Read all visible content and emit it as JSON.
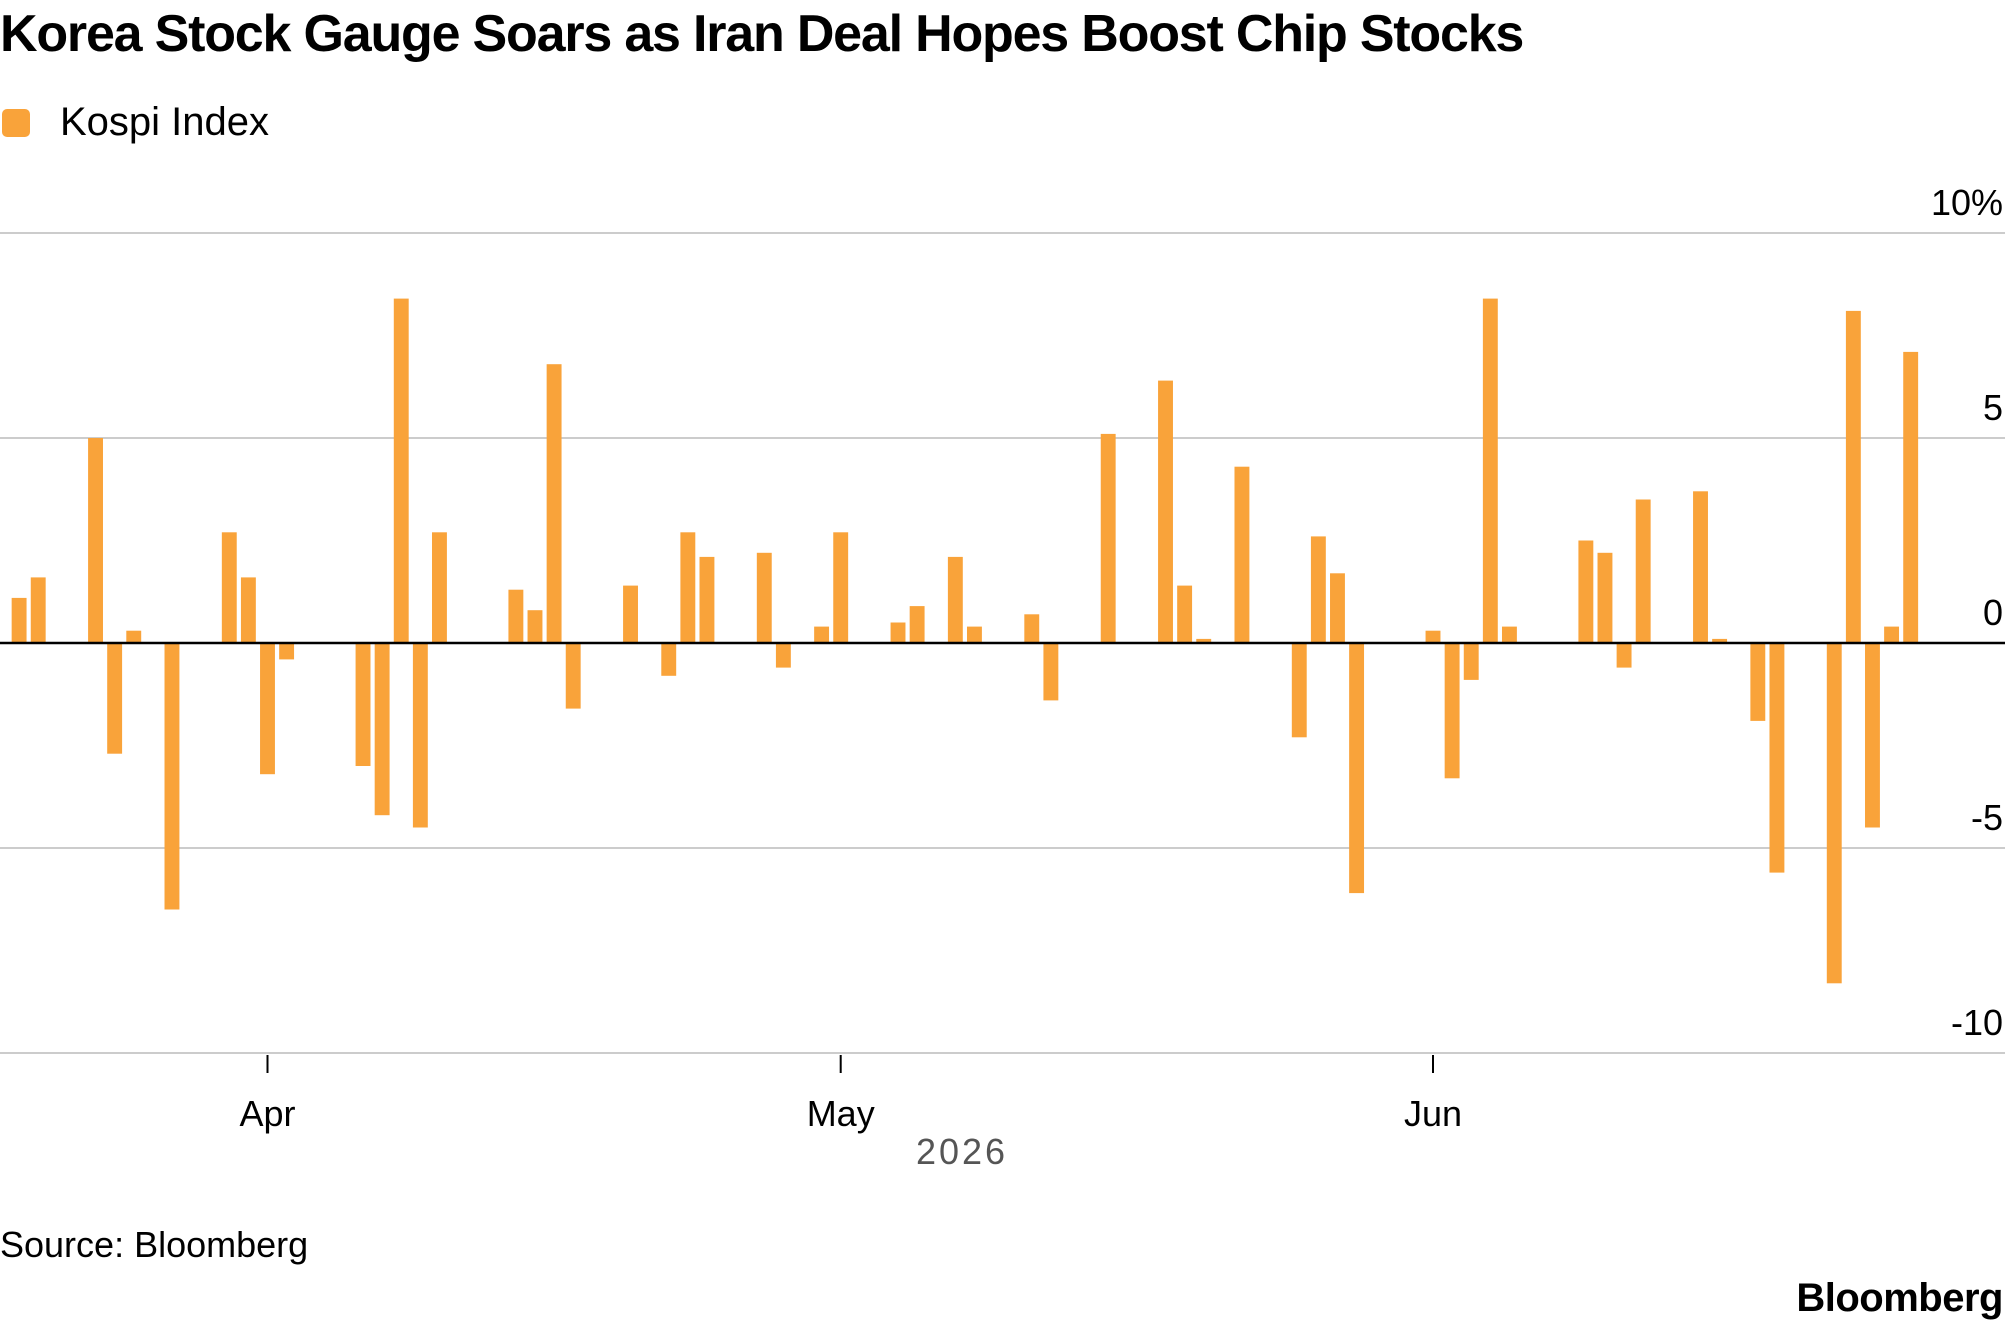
{
  "colors": {
    "bar": "#f9a33a",
    "grid": "#cccccc",
    "zero": "#000000",
    "axis": "#bbbbbb"
  },
  "footer": {
    "source": "Source: Bloomberg",
    "logo": "Bloomberg"
  },
  "chart_data": {
    "type": "bar",
    "title": "Korea Stock Gauge Soars as Iran Deal Hopes Boost Chip Stocks",
    "series": [
      {
        "name": "Kospi Index",
        "points": [
          [
            "2026-03-19",
            1.1
          ],
          [
            "2026-03-20",
            1.6
          ],
          [
            "2026-03-23",
            5.0
          ],
          [
            "2026-03-24",
            -2.7
          ],
          [
            "2026-03-25",
            0.3
          ],
          [
            "2026-03-27",
            -6.5
          ],
          [
            "2026-03-30",
            2.7
          ],
          [
            "2026-03-31",
            1.6
          ],
          [
            "2026-04-01",
            -3.2
          ],
          [
            "2026-04-02",
            -0.4
          ],
          [
            "2026-04-06",
            -3.0
          ],
          [
            "2026-04-07",
            -4.2
          ],
          [
            "2026-04-08",
            8.4
          ],
          [
            "2026-04-09",
            -4.5
          ],
          [
            "2026-04-10",
            2.7
          ],
          [
            "2026-04-14",
            1.3
          ],
          [
            "2026-04-15",
            0.8
          ],
          [
            "2026-04-16",
            6.8
          ],
          [
            "2026-04-17",
            -1.6
          ],
          [
            "2026-04-20",
            1.4
          ],
          [
            "2026-04-22",
            -0.8
          ],
          [
            "2026-04-23",
            2.7
          ],
          [
            "2026-04-24",
            2.1
          ],
          [
            "2026-04-27",
            2.2
          ],
          [
            "2026-04-28",
            -0.6
          ],
          [
            "2026-04-30",
            0.4
          ],
          [
            "2026-05-01",
            2.7
          ],
          [
            "2026-05-04",
            0.5
          ],
          [
            "2026-05-05",
            0.9
          ],
          [
            "2026-05-07",
            2.1
          ],
          [
            "2026-05-08",
            0.4
          ],
          [
            "2026-05-11",
            0.7
          ],
          [
            "2026-05-12",
            -1.4
          ],
          [
            "2026-05-15",
            5.1
          ],
          [
            "2026-05-18",
            6.4
          ],
          [
            "2026-05-19",
            1.4
          ],
          [
            "2026-05-20",
            0.1
          ],
          [
            "2026-05-22",
            4.3
          ],
          [
            "2026-05-25",
            -2.3
          ],
          [
            "2026-05-26",
            2.6
          ],
          [
            "2026-05-27",
            1.7
          ],
          [
            "2026-05-28",
            -6.1
          ],
          [
            "2026-06-01",
            0.3
          ],
          [
            "2026-06-02",
            -3.3
          ],
          [
            "2026-06-03",
            -0.9
          ],
          [
            "2026-06-04",
            8.4
          ],
          [
            "2026-06-05",
            0.4
          ],
          [
            "2026-06-09",
            2.5
          ],
          [
            "2026-06-10",
            2.2
          ],
          [
            "2026-06-11",
            -0.6
          ],
          [
            "2026-06-12",
            3.5
          ],
          [
            "2026-06-15",
            3.7
          ],
          [
            "2026-06-16",
            0.1
          ],
          [
            "2026-06-18",
            -1.9
          ],
          [
            "2026-06-19",
            -5.6
          ],
          [
            "2026-06-22",
            -8.3
          ],
          [
            "2026-06-23",
            8.1
          ],
          [
            "2026-06-24",
            -4.5
          ],
          [
            "2026-06-25",
            0.4
          ],
          [
            "2026-06-26",
            7.1
          ]
        ]
      }
    ],
    "y_ticks": [
      {
        "value": 10,
        "label": "10%"
      },
      {
        "value": 5,
        "label": "5"
      },
      {
        "value": 0,
        "label": "0"
      },
      {
        "value": -5,
        "label": "-5"
      },
      {
        "value": -10,
        "label": "-10"
      }
    ],
    "ylim": [
      -10,
      10
    ],
    "x_ticks": [
      {
        "date": "2026-04-01",
        "label": "Apr"
      },
      {
        "date": "2026-05-01",
        "label": "May"
      },
      {
        "date": "2026-06-01",
        "label": "Jun"
      }
    ],
    "xlim": [
      "2026-03-18",
      "2026-06-29"
    ],
    "x_axis_year": "2026",
    "grid": true,
    "legend_position": "top-left"
  }
}
